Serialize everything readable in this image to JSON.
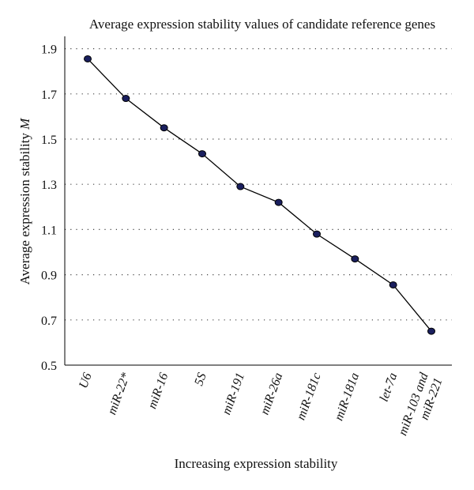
{
  "chart_data": {
    "type": "line",
    "title": "Average expression stability values of candidate reference genes",
    "xlabel": "Increasing expression stability",
    "ylabel": "Average expression stability",
    "ylabel_symbol": "M",
    "ylim": [
      0.5,
      2.0
    ],
    "yticks": [
      "1.9",
      "1.7",
      "1.5",
      "1.3",
      "1.1",
      "0.9",
      "0.7",
      "0.5"
    ],
    "grid": "horizontal dotted",
    "categories": [
      "U6",
      "miR-22*",
      "miR-16",
      "5S",
      "miR-191",
      "miR-26a",
      "miR-181c",
      "miR-181a",
      "let-7a",
      "miR-103 and miR-221"
    ],
    "category_lines": [
      [
        "U6"
      ],
      [
        "miR-22*"
      ],
      [
        "miR-16"
      ],
      [
        "5S"
      ],
      [
        "miR-191"
      ],
      [
        "miR-26a"
      ],
      [
        "miR-181c"
      ],
      [
        "miR-181a"
      ],
      [
        "let-7a"
      ],
      [
        "miR-103 and",
        "miR-221"
      ]
    ],
    "values": [
      1.855,
      1.68,
      1.55,
      1.435,
      1.29,
      1.22,
      1.08,
      0.97,
      0.855,
      0.65
    ],
    "colors": {
      "line": "#000000",
      "marker_fill": "#1a1f5e",
      "marker_stroke": "#000000"
    }
  }
}
